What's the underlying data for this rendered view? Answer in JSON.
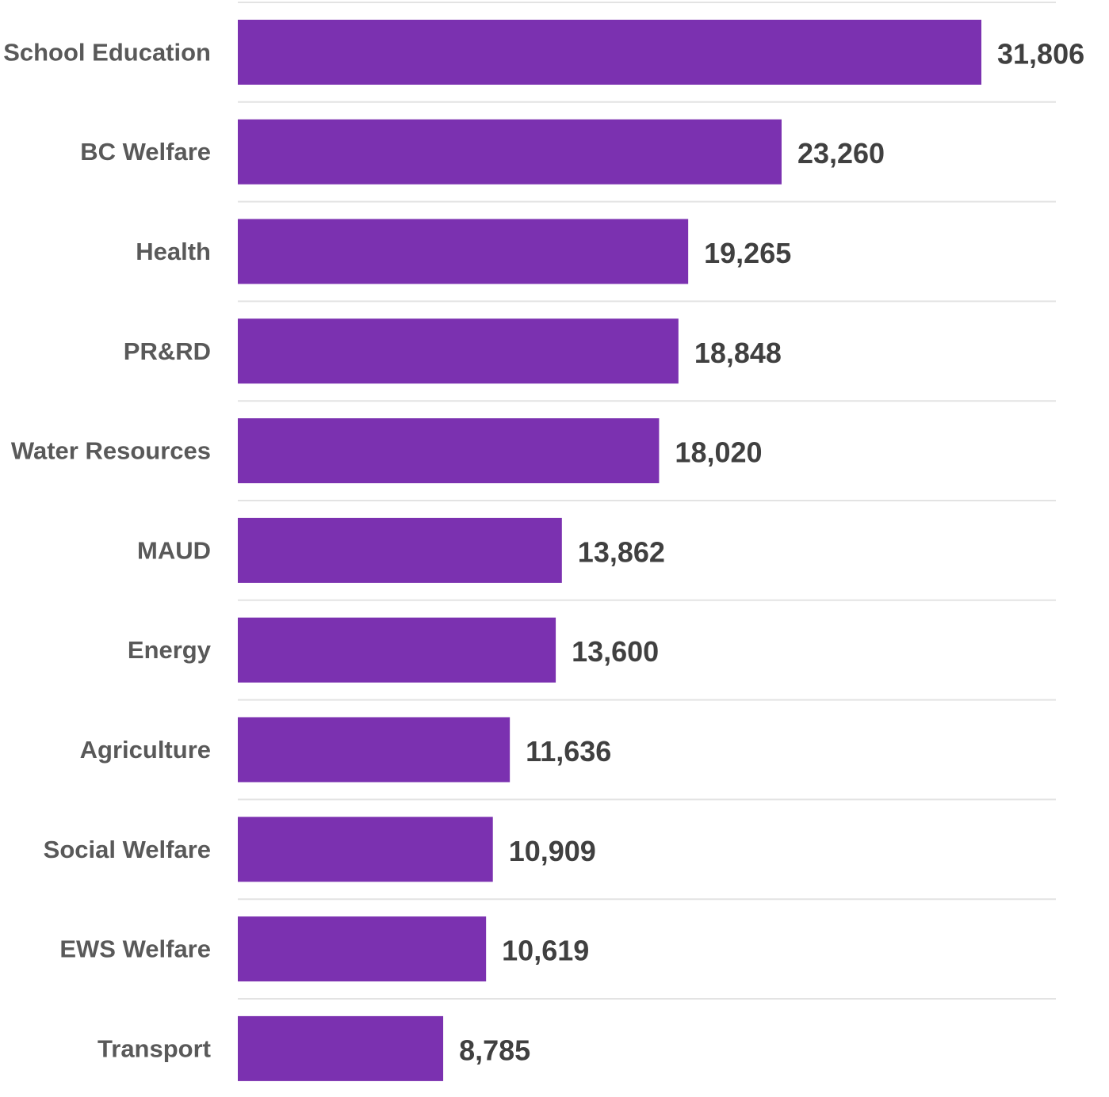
{
  "chart_data": {
    "type": "bar",
    "orientation": "horizontal",
    "categories": [
      "School Education",
      "BC Welfare",
      "Health",
      "PR&RD",
      "Water Resources",
      "MAUD",
      "Energy",
      "Agriculture",
      "Social Welfare",
      "EWS Welfare",
      "Transport"
    ],
    "values": [
      31806,
      23260,
      19265,
      18848,
      18020,
      13862,
      13600,
      11636,
      10909,
      10619,
      8785
    ],
    "data_labels": [
      "31,806",
      "23,260",
      "19,265",
      "18,848",
      "18,020",
      "13,862",
      "13,600",
      "11,636",
      "10,909",
      "10,619",
      "8,785"
    ],
    "title": "",
    "xlabel": "",
    "ylabel": "",
    "xlim": [
      0,
      35000
    ],
    "grid": true,
    "legend": "none",
    "colors": {
      "bar": "#7b31b0",
      "gridline": "#e3e3e3",
      "category_text": "#595959",
      "value_text": "#404040"
    }
  }
}
